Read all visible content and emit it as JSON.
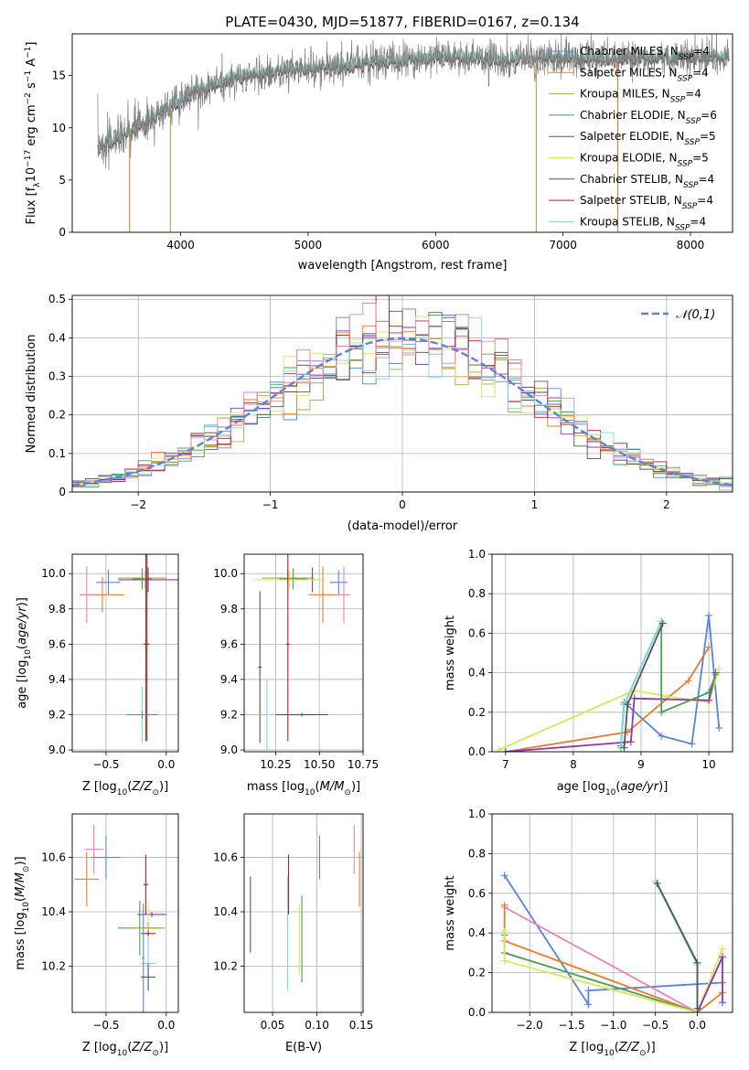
{
  "figure_title": "PLATE=0430, MJD=51877, FIBERID=0167, z=0.134",
  "colors": {
    "Chabrier MILES": "#5a84d6",
    "Salpeter MILES": "#e87c2e",
    "Kroupa MILES": "#b8a040",
    "Chabrier ELODIE": "#4e9c56",
    "Salpeter ELODIE": "#8a3ab0",
    "Kroupa ELODIE": "#d4e85a",
    "Chabrier STELIB": "#555555",
    "Salpeter STELIB": "#b01e1e",
    "Kroupa STELIB": "#7fd8e0",
    "Extra pink": "#e884b8",
    "data": "#808080"
  },
  "chart_data": [
    {
      "id": "spectrum",
      "type": "line",
      "title": "PLATE=0430, MJD=51877, FIBERID=0167, z=0.134",
      "xlabel": "wavelength [Angstrom, rest frame]",
      "ylabel": "Flux [f_λ 10^-17 erg cm^-2 s^-1 A^-1]",
      "xlim": [
        3150,
        8330
      ],
      "ylim": [
        0,
        19
      ],
      "xticks": [
        4000,
        5000,
        6000,
        7000,
        8000
      ],
      "yticks": [
        0,
        5,
        10,
        15
      ],
      "grid": false,
      "legend_position": "right",
      "legend": [
        "Chabrier MILES, N_SSP=4",
        "Salpeter MILES, N_SSP=4",
        "Kroupa MILES, N_SSP=4",
        "Chabrier ELODIE, N_SSP=6",
        "Salpeter ELODIE, N_SSP=5",
        "Kroupa ELODIE, N_SSP=5",
        "Chabrier STELIB, N_SSP=4",
        "Salpeter STELIB, N_SSP=4",
        "Kroupa STELIB, N_SSP=4"
      ],
      "legend_series": [
        "Chabrier MILES",
        "Salpeter MILES",
        "Kroupa MILES",
        "Chabrier ELODIE",
        "Salpeter ELODIE",
        "Kroupa ELODIE",
        "Chabrier STELIB",
        "Salpeter STELIB",
        "Kroupa STELIB"
      ],
      "data_range": [
        3350,
        8300
      ],
      "continuum": [
        [
          3350,
          8.2
        ],
        [
          3600,
          9.5
        ],
        [
          3900,
          12.0
        ],
        [
          4100,
          13.5
        ],
        [
          4500,
          15.0
        ],
        [
          5000,
          15.7
        ],
        [
          5500,
          16.2
        ],
        [
          6000,
          16.8
        ],
        [
          6500,
          16.5
        ],
        [
          7000,
          16.7
        ],
        [
          7500,
          16.6
        ],
        [
          8000,
          16.9
        ],
        [
          8300,
          16.8
        ]
      ],
      "fit_drops": [
        {
          "x": 3600,
          "series": "Salpeter MILES"
        },
        {
          "x": 3920,
          "series": "Kroupa MILES"
        },
        {
          "x": 6790,
          "series": "Kroupa MILES"
        },
        {
          "x": 7430,
          "series": "Salpeter MILES"
        }
      ]
    },
    {
      "id": "residuals",
      "type": "histogram",
      "xlabel": "(data-model)/error",
      "ylabel": "Normed distribution",
      "xlim": [
        -2.5,
        2.5
      ],
      "ylim": [
        0,
        0.51
      ],
      "xticks": [
        -2,
        -1,
        0,
        1,
        2
      ],
      "yticks": [
        0.0,
        0.1,
        0.2,
        0.3,
        0.4,
        0.5
      ],
      "grid": true,
      "bin_width": 0.1,
      "legend_position": "upper right",
      "legend": [
        "𝒩(0,1)"
      ],
      "reference_curve": "normal(0,1)",
      "series_colors": [
        "#5a84d6",
        "#e87c2e",
        "#b8a040",
        "#4e9c56",
        "#8a3ab0",
        "#d4e85a",
        "#555555",
        "#b01e1e",
        "#7fd8e0",
        "#e884b8"
      ]
    },
    {
      "id": "age_vs_Z",
      "type": "errorbar",
      "xlabel": "Z [log10(Z/Z⊙)]",
      "ylabel": "age [log10(age/yr)]",
      "xlim": [
        -0.78,
        0.1
      ],
      "ylim": [
        8.99,
        10.11
      ],
      "xticks": [
        -0.5,
        0.0
      ],
      "yticks": [
        9.0,
        9.2,
        9.4,
        9.6,
        9.8,
        10.0
      ],
      "grid": true,
      "points": [
        {
          "s": "Salpeter MILES",
          "x": -0.53,
          "y": 9.88,
          "xe": 0.18,
          "ye": 0.1
        },
        {
          "s": "Extra pink",
          "x": -0.66,
          "y": 9.88,
          "xe": 0.06,
          "ye": 0.16
        },
        {
          "s": "Chabrier MILES",
          "x": -0.48,
          "y": 9.95,
          "xe": 0.1,
          "ye": 0.07
        },
        {
          "s": "Kroupa MILES",
          "x": -0.2,
          "y": 9.975,
          "xe": 0.2,
          "ye": 0.05
        },
        {
          "s": "Chabrier ELODIE",
          "x": -0.2,
          "y": 9.97,
          "xe": 0.08,
          "ye": 0.06
        },
        {
          "s": "Kroupa ELODIE",
          "x": -0.18,
          "y": 9.965,
          "xe": 0.2,
          "ye": 0.05
        },
        {
          "s": "Salpeter ELODIE",
          "x": -0.15,
          "y": 9.965,
          "xe": 0.25,
          "ye": 0.07
        },
        {
          "s": "Chabrier STELIB",
          "x": -0.17,
          "y": 9.6,
          "xe": 0.02,
          "ye": 0.55
        },
        {
          "s": "Salpeter STELIB",
          "x": -0.16,
          "y": 9.6,
          "xe": 0.02,
          "ye": 0.55
        },
        {
          "s": "Kroupa STELIB",
          "x": -0.2,
          "y": 9.2,
          "xe": 0.13,
          "ye": 0.16
        },
        {
          "s": "Chabrier MILES",
          "x": -0.2,
          "y": 9.2,
          "xe": 0.13,
          "ye": 0.02
        }
      ]
    },
    {
      "id": "age_vs_mass",
      "type": "errorbar",
      "xlabel": "mass [log10(M/M⊙)]",
      "ylabel": "",
      "xlim": [
        10.07,
        10.75
      ],
      "ylim": [
        8.99,
        10.11
      ],
      "xticks": [
        10.25,
        10.5,
        10.75
      ],
      "yticks": [
        9.0,
        9.2,
        9.4,
        9.6,
        9.8,
        10.0
      ],
      "grid": true,
      "points": [
        {
          "s": "Extra pink",
          "x": 10.64,
          "y": 9.88,
          "xe": 0.04,
          "ye": 0.16
        },
        {
          "s": "Salpeter MILES",
          "x": 10.52,
          "y": 9.88,
          "xe": 0.08,
          "ye": 0.16
        },
        {
          "s": "Chabrier MILES",
          "x": 10.61,
          "y": 9.95,
          "xe": 0.05,
          "ye": 0.07
        },
        {
          "s": "Kroupa MILES",
          "x": 10.32,
          "y": 9.975,
          "xe": 0.15,
          "ye": 0.05
        },
        {
          "s": "Chabrier ELODIE",
          "x": 10.35,
          "y": 9.97,
          "xe": 0.08,
          "ye": 0.06
        },
        {
          "s": "Salpeter ELODIE",
          "x": 10.46,
          "y": 9.965,
          "xe": 0.05,
          "ye": 0.07
        },
        {
          "s": "Kroupa ELODIE",
          "x": 10.33,
          "y": 9.965,
          "xe": 0.2,
          "ye": 0.05
        },
        {
          "s": "Chabrier STELIB",
          "x": 10.16,
          "y": 9.47,
          "xe": 0.01,
          "ye": 0.43
        },
        {
          "s": "Salpeter STELIB",
          "x": 10.32,
          "y": 9.6,
          "xe": 0.01,
          "ye": 0.55
        },
        {
          "s": "Kroupa STELIB",
          "x": 10.2,
          "y": 9.2,
          "xe": 0.15,
          "ye": 0.2
        },
        {
          "s": "Salpeter STELIB",
          "x": 10.4,
          "y": 9.2,
          "xe": 0.15,
          "ye": 0.01
        }
      ]
    },
    {
      "id": "mass_weight_vs_age",
      "type": "line",
      "xlabel": "age [log10(age/yr)]",
      "ylabel": "mass weight",
      "xlim": [
        6.8,
        10.35
      ],
      "ylim": [
        0,
        1.0
      ],
      "xticks": [
        7,
        8,
        9,
        10
      ],
      "yticks": [
        0.0,
        0.2,
        0.4,
        0.6,
        0.8,
        1.0
      ],
      "grid": true,
      "series": [
        {
          "name": "Chabrier MILES",
          "points": [
            [
              8.7,
              0.03
            ],
            [
              8.75,
              0.25
            ],
            [
              9.3,
              0.08
            ],
            [
              9.75,
              0.04
            ],
            [
              10.0,
              0.69
            ],
            [
              10.15,
              0.12
            ]
          ]
        },
        {
          "name": "Salpeter MILES",
          "points": [
            [
              7.0,
              0.0
            ],
            [
              8.8,
              0.1
            ],
            [
              9.7,
              0.36
            ],
            [
              10.0,
              0.53
            ]
          ]
        },
        {
          "name": "Kroupa ELODIE",
          "points": [
            [
              6.9,
              0.01
            ],
            [
              8.9,
              0.31
            ],
            [
              9.4,
              0.28
            ],
            [
              10.0,
              0.25
            ],
            [
              10.15,
              0.42
            ]
          ]
        },
        {
          "name": "Salpeter ELODIE",
          "points": [
            [
              7.0,
              0.0
            ],
            [
              8.85,
              0.05
            ],
            [
              8.9,
              0.27
            ],
            [
              10.0,
              0.26
            ],
            [
              10.1,
              0.4
            ]
          ]
        },
        {
          "name": "Chabrier ELODIE",
          "points": [
            [
              8.7,
              0.02
            ],
            [
              8.75,
              0.24
            ],
            [
              9.3,
              0.66
            ],
            [
              9.3,
              0.2
            ],
            [
              10.0,
              0.3
            ],
            [
              10.1,
              0.39
            ]
          ]
        },
        {
          "name": "Kroupa STELIB",
          "points": [
            [
              8.7,
              0.02
            ],
            [
              8.75,
              0.24
            ],
            [
              9.3,
              0.66
            ]
          ]
        },
        {
          "name": "Chabrier STELIB",
          "points": [
            [
              8.75,
              0.02
            ],
            [
              8.8,
              0.24
            ],
            [
              9.32,
              0.65
            ]
          ]
        }
      ]
    },
    {
      "id": "mass_vs_Z",
      "type": "errorbar",
      "xlabel": "Z [log10(Z/Z⊙)]",
      "ylabel": "mass [log10(M/M⊙)]",
      "xlim": [
        -0.78,
        0.1
      ],
      "ylim": [
        10.03,
        10.76
      ],
      "xticks": [
        -0.5,
        0.0
      ],
      "yticks": [
        10.2,
        10.4,
        10.6
      ],
      "grid": true,
      "points": [
        {
          "s": "Extra pink",
          "x": -0.6,
          "y": 10.63,
          "xe": 0.08,
          "ye": 0.09
        },
        {
          "s": "Chabrier MILES",
          "x": -0.5,
          "y": 10.6,
          "xe": 0.12,
          "ye": 0.08
        },
        {
          "s": "Salpeter MILES",
          "x": -0.66,
          "y": 10.52,
          "xe": 0.1,
          "ye": 0.1
        },
        {
          "s": "Salpeter STELIB",
          "x": -0.17,
          "y": 10.5,
          "xe": 0.02,
          "ye": 0.11
        },
        {
          "s": "Salpeter ELODIE",
          "x": -0.12,
          "y": 10.39,
          "xe": 0.12,
          "ye": 0.01
        },
        {
          "s": "Chabrier ELODIE",
          "x": -0.22,
          "y": 10.34,
          "xe": 0.18,
          "ye": 0.1
        },
        {
          "s": "Kroupa ELODIE",
          "x": -0.15,
          "y": 10.34,
          "xe": 0.12,
          "ye": 0.1
        },
        {
          "s": "Kroupa MILES",
          "x": -0.15,
          "y": 10.34,
          "xe": 0.14,
          "ye": 0.02
        },
        {
          "s": "Salpeter STELIB",
          "x": -0.15,
          "y": 10.32,
          "xe": 0.06,
          "ye": 0.01
        },
        {
          "s": "Kroupa STELIB",
          "x": -0.15,
          "y": 10.21,
          "xe": 0.06,
          "ye": 0.1
        },
        {
          "s": "Chabrier MILES",
          "x": -0.19,
          "y": 10.23,
          "xe": 0.01,
          "ye": 0.2
        },
        {
          "s": "Chabrier STELIB",
          "x": -0.15,
          "y": 10.16,
          "xe": 0.06,
          "ye": 0.05
        }
      ]
    },
    {
      "id": "mass_vs_EBV",
      "type": "errorbar",
      "xlabel": "E(B-V)",
      "ylabel": "",
      "xlim": [
        0.018,
        0.152
      ],
      "ylim": [
        10.03,
        10.76
      ],
      "xticks": [
        0.05,
        0.1,
        0.15
      ],
      "yticks": [
        10.2,
        10.4,
        10.6
      ],
      "grid": true,
      "points": [
        {
          "s": "Salpeter ELODIE",
          "x": 0.025,
          "y": 10.39,
          "xe": 0,
          "ye": 0.14
        },
        {
          "s": "Kroupa STELIB",
          "x": 0.067,
          "y": 10.32,
          "xe": 0,
          "ye": 0.21
        },
        {
          "s": "Salpeter STELIB",
          "x": 0.068,
          "y": 10.5,
          "xe": 0,
          "ye": 0.11
        },
        {
          "s": "Kroupa ELODIE",
          "x": 0.08,
          "y": 10.3,
          "xe": 0,
          "ye": 0.13
        },
        {
          "s": "Chabrier ELODIE",
          "x": 0.083,
          "y": 10.3,
          "xe": 0,
          "ye": 0.16
        },
        {
          "s": "Chabrier MILES",
          "x": 0.103,
          "y": 10.6,
          "xe": 0,
          "ye": 0.08
        },
        {
          "s": "Extra pink",
          "x": 0.142,
          "y": 10.63,
          "xe": 0,
          "ye": 0.09
        },
        {
          "s": "Salpeter MILES",
          "x": 0.148,
          "y": 10.52,
          "xe": 0,
          "ye": 0.1
        }
      ]
    },
    {
      "id": "mass_weight_vs_Z",
      "type": "line",
      "xlabel": "Z [log10(Z/Z⊙)]",
      "ylabel": "mass weight",
      "xlim": [
        -2.45,
        0.42
      ],
      "ylim": [
        0,
        1.0
      ],
      "xticks": [
        -2.0,
        -1.5,
        -1.0,
        -0.5,
        0.0
      ],
      "yticks": [
        0.0,
        0.2,
        0.4,
        0.6,
        0.8,
        1.0
      ],
      "grid": true,
      "series": [
        {
          "name": "Chabrier MILES",
          "points": [
            [
              -2.3,
              0.69
            ],
            [
              -1.3,
              0.04
            ],
            [
              -1.3,
              0.11
            ],
            [
              0.3,
              0.15
            ]
          ]
        },
        {
          "name": "Extra pink",
          "points": [
            [
              -2.3,
              0.53
            ],
            [
              0.0,
              0.0
            ],
            [
              0.3,
              0.28
            ]
          ]
        },
        {
          "name": "Salpeter MILES",
          "points": [
            [
              -2.3,
              0.54
            ],
            [
              -2.3,
              0.36
            ],
            [
              0.0,
              0.0
            ],
            [
              0.3,
              0.1
            ]
          ]
        },
        {
          "name": "Chabrier ELODIE",
          "points": [
            [
              -2.3,
              0.39
            ],
            [
              -2.3,
              0.3
            ],
            [
              0.0,
              0.0
            ],
            [
              0.0,
              0.25
            ]
          ]
        },
        {
          "name": "Kroupa ELODIE",
          "points": [
            [
              -2.3,
              0.41
            ],
            [
              -2.3,
              0.26
            ],
            [
              0.0,
              0.0
            ],
            [
              0.3,
              0.32
            ]
          ]
        },
        {
          "name": "Salpeter ELODIE",
          "points": [
            [
              0.0,
              0.0
            ],
            [
              0.3,
              0.28
            ],
            [
              0.3,
              0.05
            ]
          ]
        },
        {
          "name": "Kroupa STELIB",
          "points": [
            [
              -0.5,
              0.66
            ],
            [
              0.0,
              0.24
            ],
            [
              0.0,
              0.0
            ]
          ]
        },
        {
          "name": "Chabrier STELIB",
          "points": [
            [
              -0.48,
              0.65
            ],
            [
              0.0,
              0.25
            ],
            [
              0.0,
              0.02
            ]
          ]
        }
      ]
    }
  ]
}
